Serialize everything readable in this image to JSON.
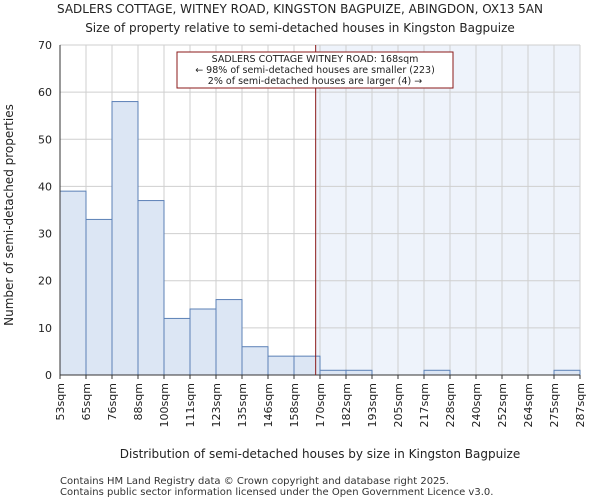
{
  "chart_data": {
    "type": "bar",
    "title": "SADLERS COTTAGE, WITNEY ROAD, KINGSTON BAGPUIZE, ABINGDON, OX13 5AN",
    "subtitle": "Size of property relative to semi-detached houses in Kingston Bagpuize",
    "xlabel": "Distribution of semi-detached houses by size in Kingston Bagpuize",
    "ylabel": "Number of semi-detached properties",
    "x_ticks": [
      "53sqm",
      "65sqm",
      "76sqm",
      "88sqm",
      "100sqm",
      "111sqm",
      "123sqm",
      "135sqm",
      "146sqm",
      "158sqm",
      "170sqm",
      "182sqm",
      "193sqm",
      "205sqm",
      "217sqm",
      "228sqm",
      "240sqm",
      "252sqm",
      "264sqm",
      "275sqm",
      "287sqm"
    ],
    "values": [
      39,
      33,
      58,
      37,
      12,
      14,
      16,
      6,
      4,
      4,
      1,
      1,
      0,
      0,
      1,
      0,
      0,
      0,
      0,
      1
    ],
    "ylim": [
      0,
      70
    ],
    "yticks": [
      0,
      10,
      20,
      30,
      40,
      50,
      60,
      70
    ],
    "grid": true,
    "marker_value_sqm": 168,
    "annotation": {
      "line1": "SADLERS COTTAGE WITNEY ROAD: 168sqm",
      "line2": "← 98% of semi-detached houses are smaller (223)",
      "line3": "2% of semi-detached houses are larger (4) →"
    },
    "colors": {
      "bar_fill": "#dce6f4",
      "bar_stroke": "#5b80b6",
      "marker_line": "#8b1a1a",
      "highlight_fill": "#eef3fb",
      "grid": "#cfcfcf"
    }
  },
  "footer": {
    "line1": "Contains HM Land Registry data © Crown copyright and database right 2025.",
    "line2": "Contains public sector information licensed under the Open Government Licence v3.0."
  }
}
